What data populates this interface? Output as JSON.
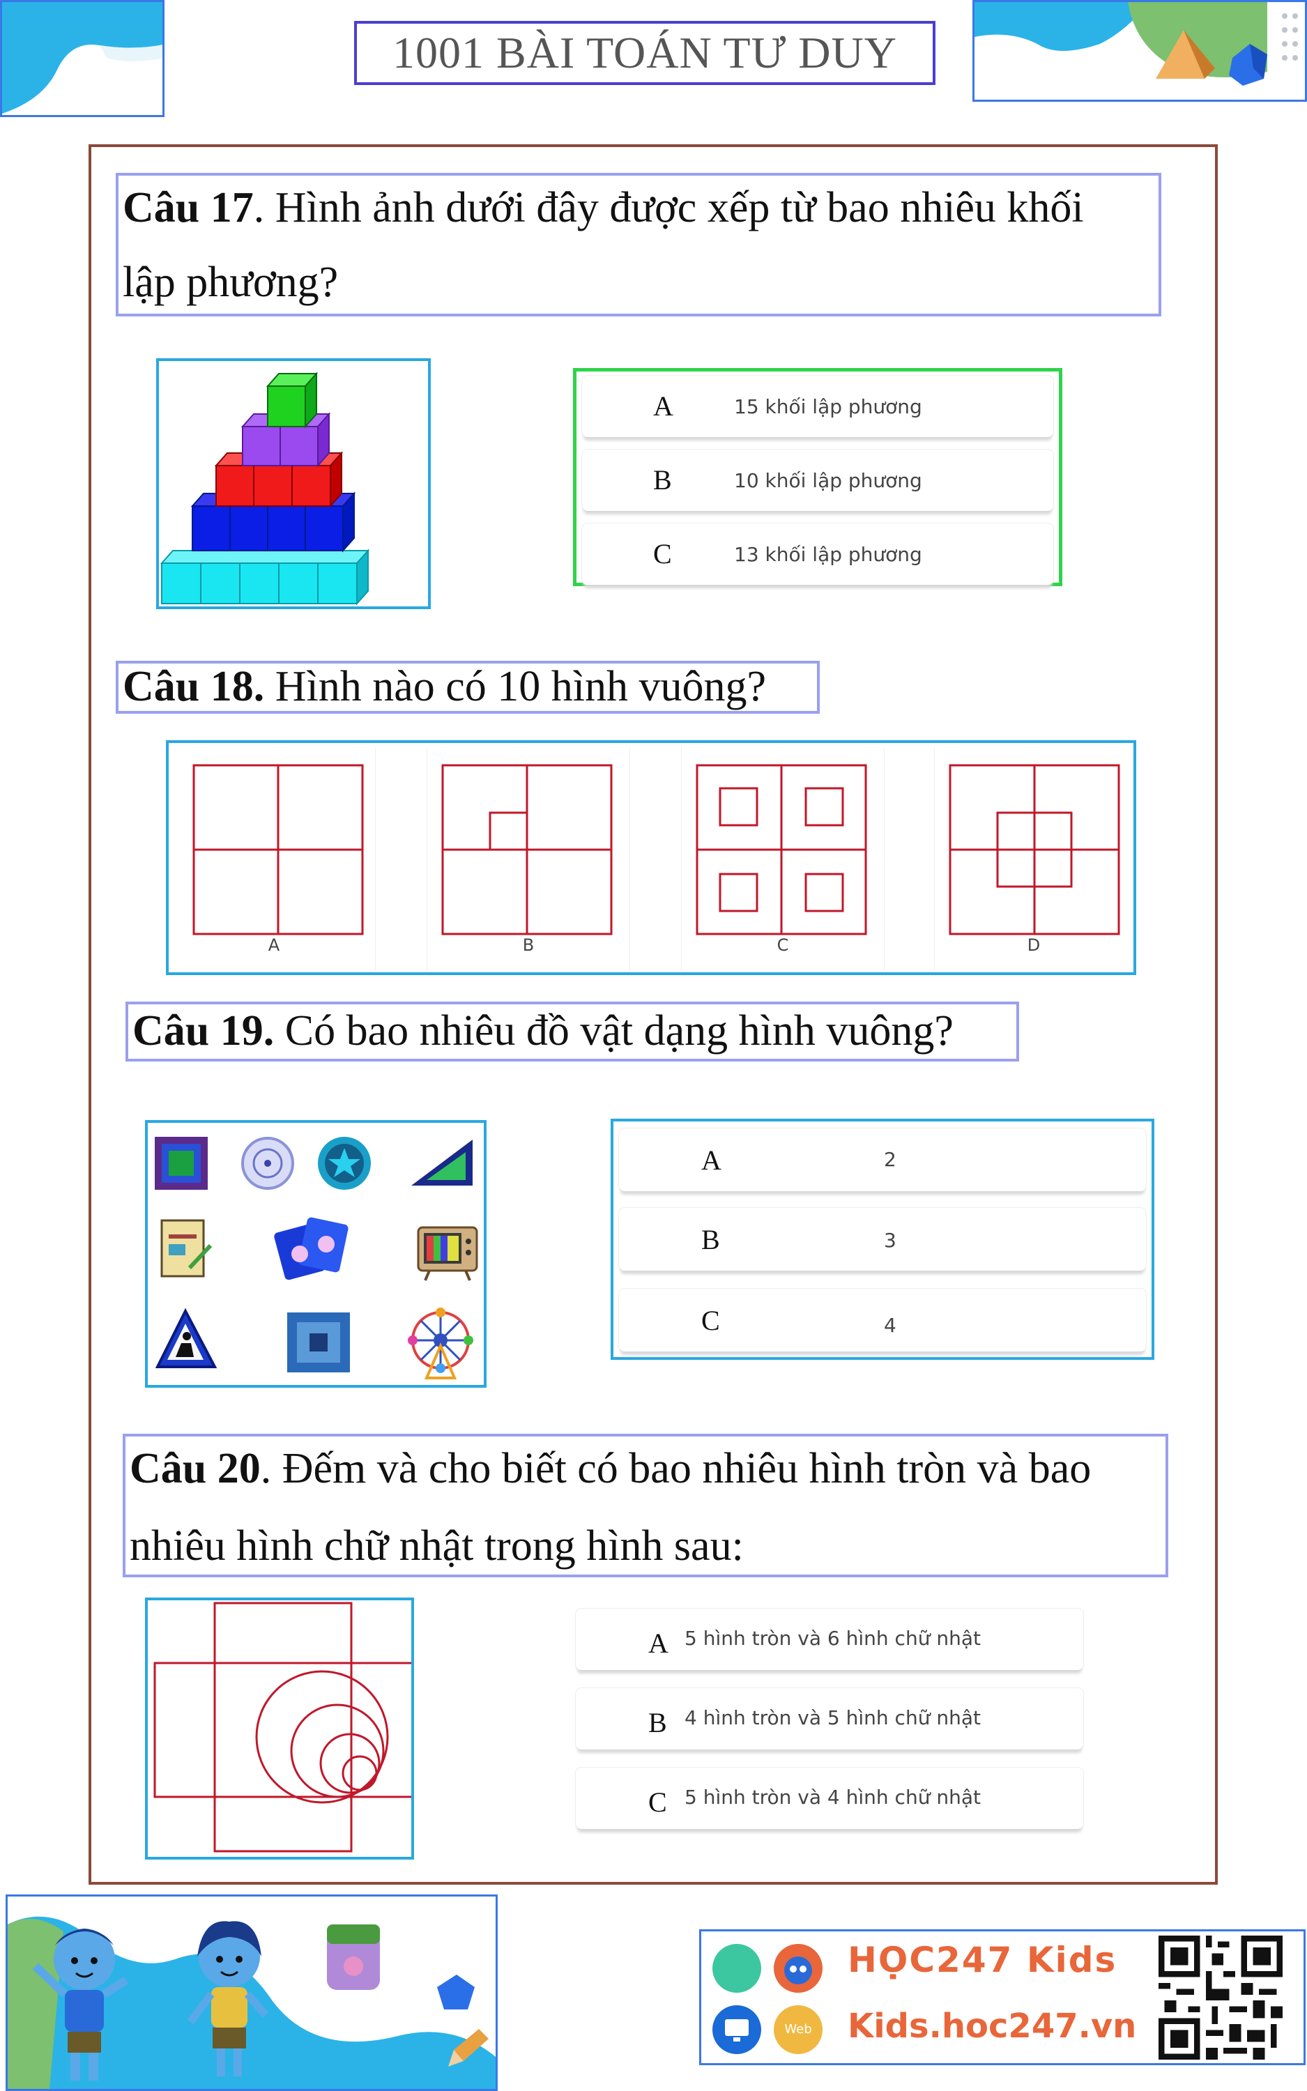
{
  "header": {
    "title": "1001 BÀI TOÁN TƯ DUY"
  },
  "q17": {
    "num": "Câu 17",
    "text": ". Hình ảnh dưới đây được xếp từ bao nhiêu khối",
    "text2": "lập phương?",
    "options": [
      {
        "letter": "A",
        "text": "15 khối lập phương"
      },
      {
        "letter": "B",
        "text": "10 khối lập phương"
      },
      {
        "letter": "C",
        "text": "13 khối lập phương"
      }
    ]
  },
  "q18": {
    "num": "Câu 18.",
    "text": " Hình nào có 10 hình vuông?",
    "labels": [
      "A",
      "B",
      "C",
      "D"
    ]
  },
  "q19": {
    "num": "Câu 19.",
    "text": " Có bao nhiêu đồ vật dạng hình vuông?",
    "options": [
      {
        "letter": "A",
        "text": "2"
      },
      {
        "letter": "B",
        "text": "3"
      },
      {
        "letter": "C",
        "text": "4"
      }
    ]
  },
  "q20": {
    "num": "Câu 20",
    "text": ". Đếm và cho biết có bao nhiêu hình tròn và bao",
    "text2": "nhiêu hình chữ nhật trong hình sau:",
    "options": [
      {
        "letter": "A",
        "text": "5 hình tròn và 6 hình chữ nhật"
      },
      {
        "letter": "B",
        "text": "4 hình tròn và 5 hình chữ nhật"
      },
      {
        "letter": "C",
        "text": "5 hình tròn và 4 hình chữ nhật"
      }
    ]
  },
  "footer": {
    "brand": "HỌC247 Kids",
    "url": "Kids.hoc247.vn",
    "web_badge": "Web"
  },
  "colors": {
    "accent_blue": "#29a8e0",
    "title_border": "#4a3fcf",
    "question_border": "#9aa0ee",
    "frame_brown": "#8b4a3a",
    "option_green": "#2fd34a",
    "shape_red": "#c0182a"
  }
}
